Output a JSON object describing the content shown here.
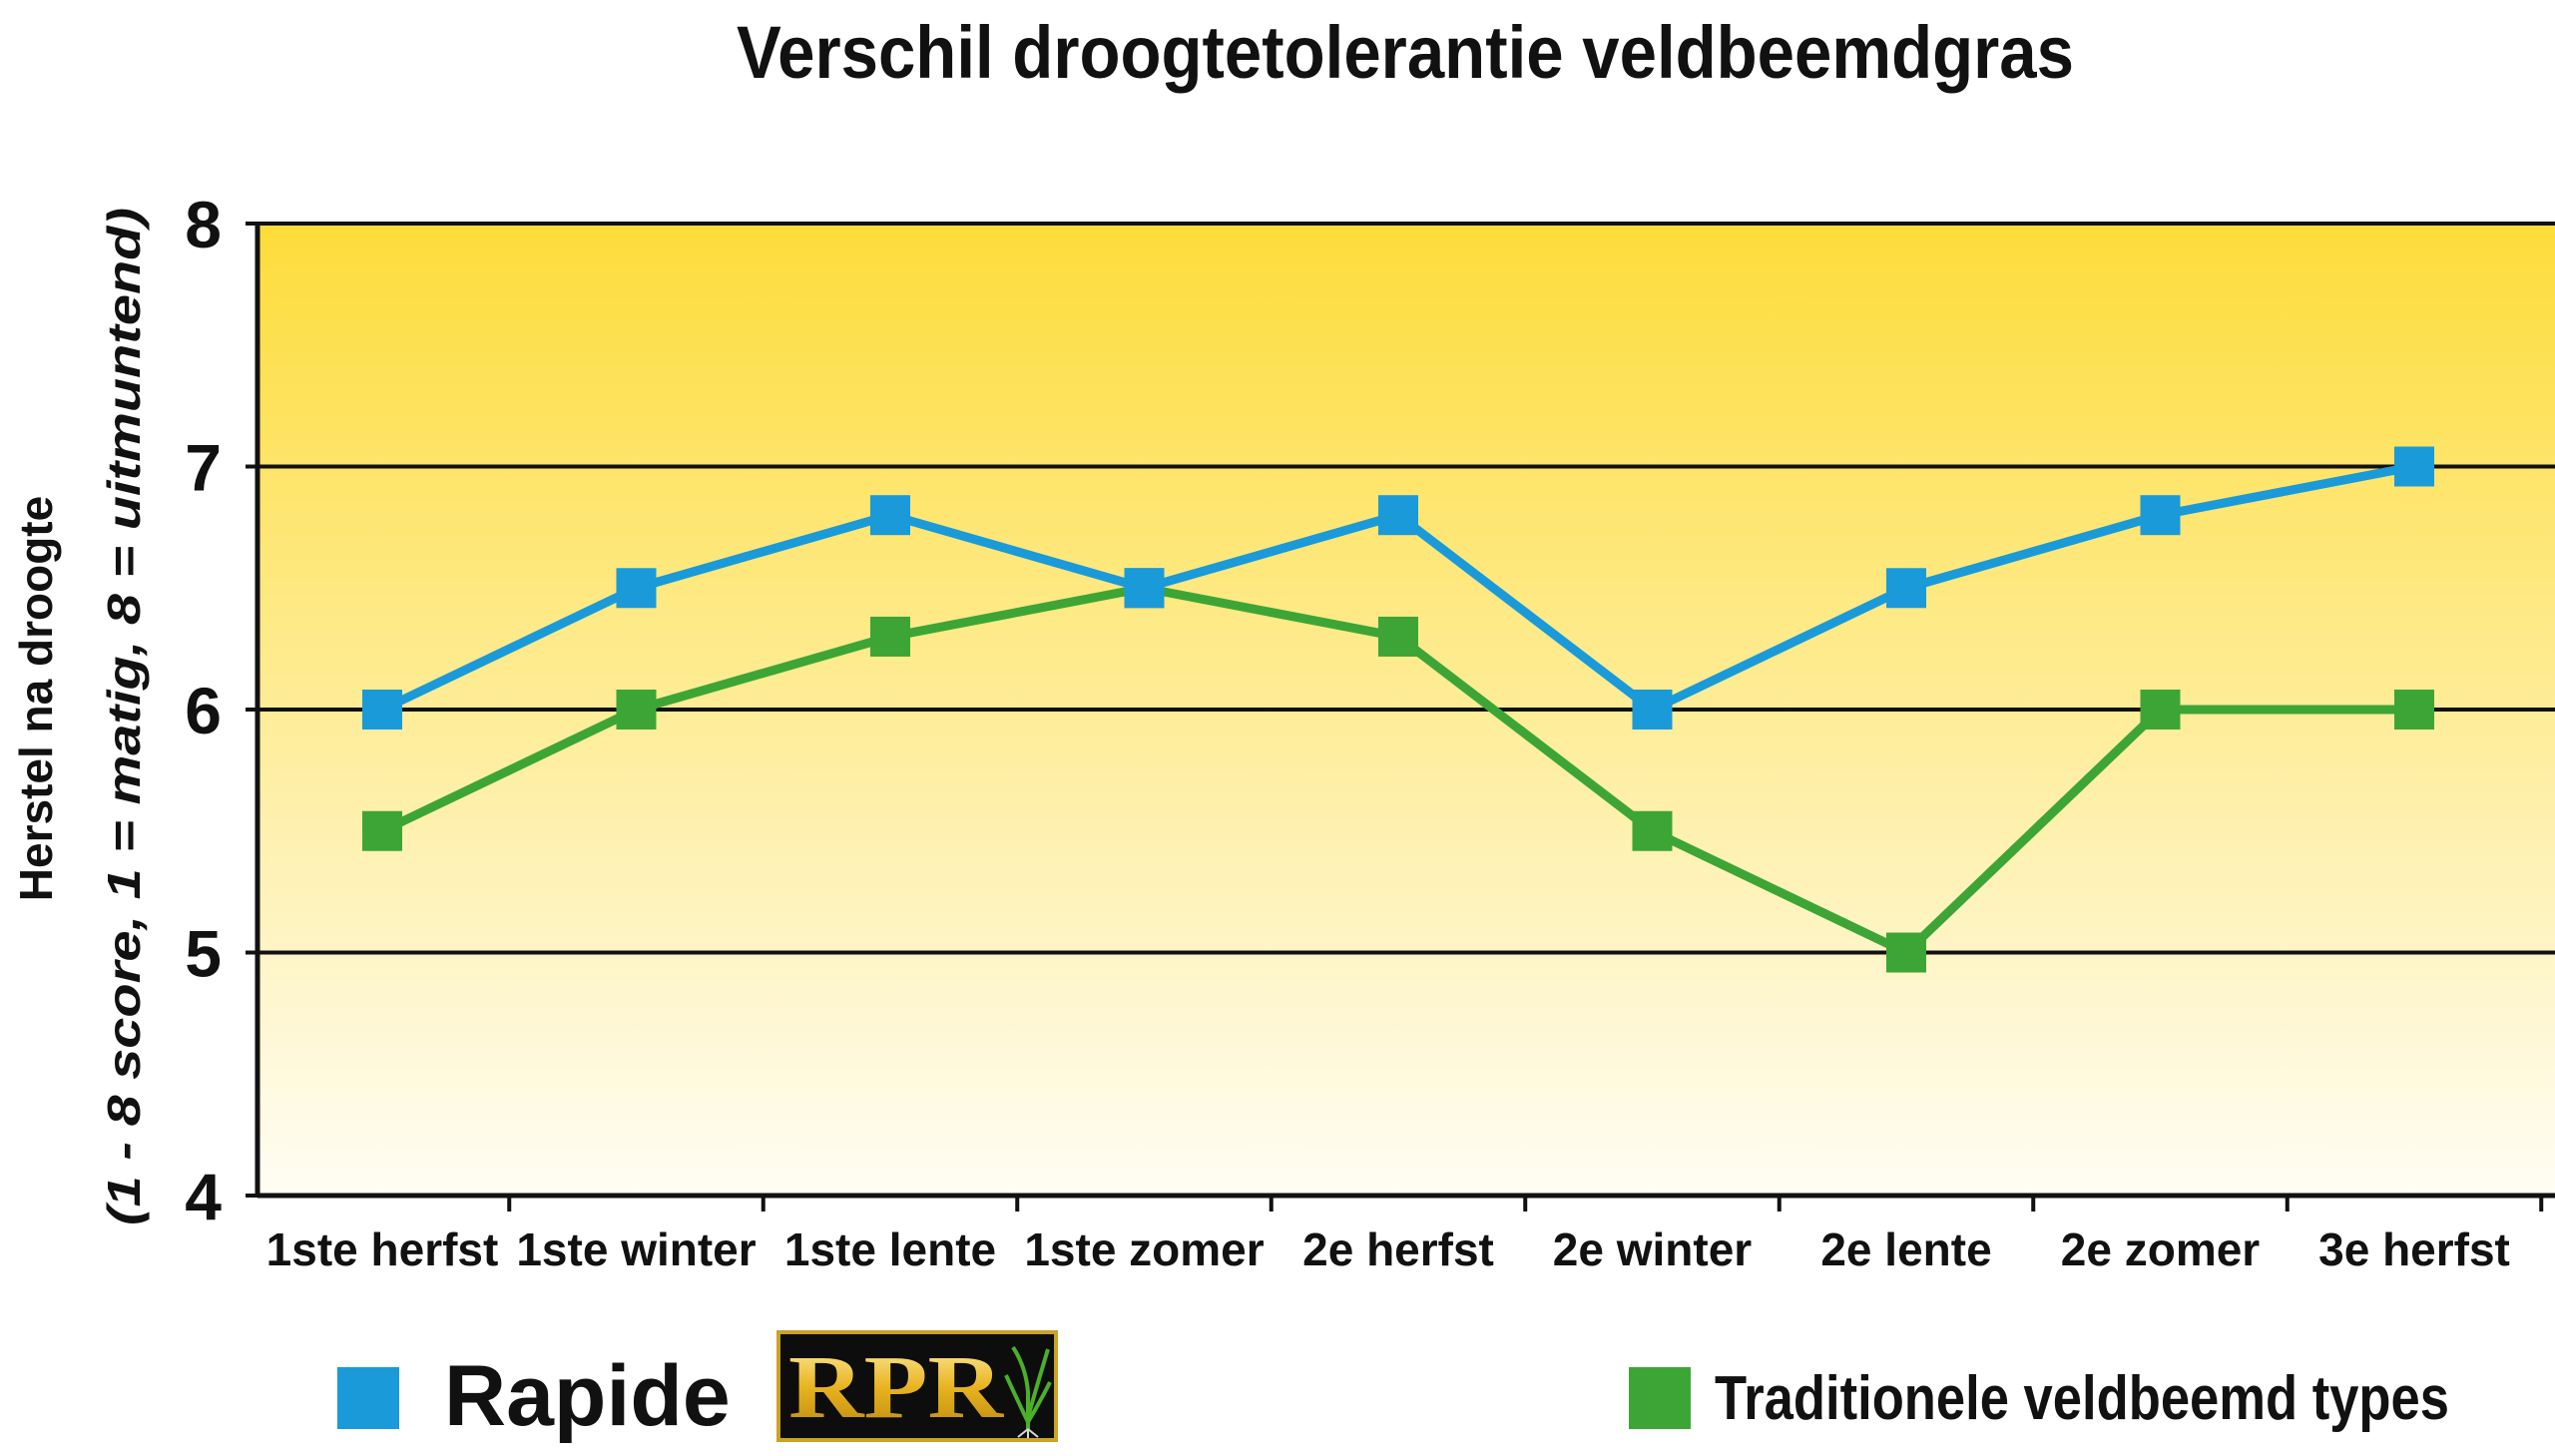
{
  "chart_data": {
    "type": "line",
    "title": "Verschil droogtetolerantie veldbeemdgras",
    "ylabel_line1": "Herstel na droogte",
    "ylabel_line2": "(1 - 8 score, 1 = matig, 8 = uitmuntend)",
    "xlabel": "",
    "categories": [
      "1ste herfst",
      "1ste winter",
      "1ste lente",
      "1ste zomer",
      "2e herfst",
      "2e winter",
      "2e lente",
      "2e zomer",
      "3e herfst"
    ],
    "ylim": [
      4,
      8
    ],
    "yticks": [
      4,
      5,
      6,
      7,
      8
    ],
    "gridlines_at": [
      5,
      6,
      7
    ],
    "series": [
      {
        "name": "Rapide",
        "color": "#1a9ad9",
        "values": [
          6.0,
          6.5,
          6.8,
          6.5,
          6.8,
          6.0,
          6.5,
          6.8,
          7.0
        ]
      },
      {
        "name": "Traditionele veldbeemd types",
        "color": "#3da535",
        "values": [
          5.5,
          6.0,
          6.3,
          6.5,
          6.3,
          5.5,
          5.0,
          6.0,
          6.0
        ]
      }
    ],
    "background_gradient": [
      "#fddc3a",
      "#fffdf5"
    ],
    "legend_position": "bottom",
    "logo_text": "RPR"
  }
}
